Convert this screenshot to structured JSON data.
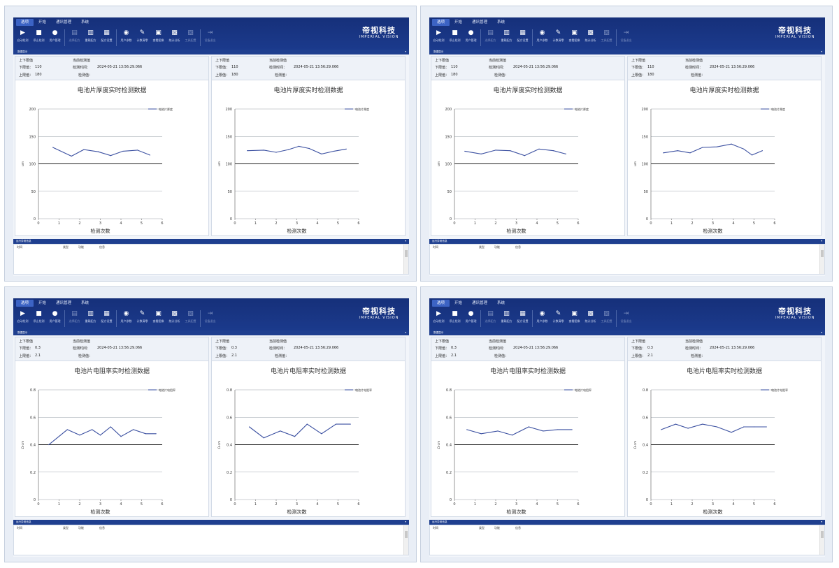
{
  "colors": {
    "ribbon": "#1b3a8c",
    "accent_tab": "#3c63c4",
    "line": "#3a4fa0"
  },
  "tabs": [
    "选项",
    "开始",
    "通讯管理",
    "系统"
  ],
  "toolbar": [
    {
      "label": "启动检测",
      "icon": "play-icon",
      "dim": false
    },
    {
      "label": "停止检测",
      "icon": "stop-icon",
      "dim": false
    },
    {
      "label": "用户管理",
      "icon": "user-icon",
      "dim": false
    },
    {
      "sep": true
    },
    {
      "label": "选择配方",
      "icon": "recipe-select-icon",
      "dim": true
    },
    {
      "label": "重载配方",
      "icon": "recipe-reload-icon",
      "dim": false
    },
    {
      "label": "配方设置",
      "icon": "recipe-settings-icon",
      "dim": false
    },
    {
      "sep": true
    },
    {
      "label": "用户参数",
      "icon": "user-params-icon",
      "dim": false
    },
    {
      "label": "计数清零",
      "icon": "clear-count-icon",
      "dim": false
    },
    {
      "label": "查看图像",
      "icon": "image-icon",
      "dim": false
    },
    {
      "label": "统计分析",
      "icon": "stats-icon",
      "dim": false
    },
    {
      "label": "工具配置",
      "icon": "tools-config-icon",
      "dim": true
    },
    {
      "sep": true
    },
    {
      "label": "设备退出",
      "icon": "exit-icon",
      "dim": true
    }
  ],
  "logo": {
    "cn": "帝视科技",
    "en": "IMPERIAL VISION"
  },
  "device_bar": "数据显示",
  "log_bar": "运行异常信息",
  "log_columns": [
    "时间",
    "类型",
    "功能",
    "信息"
  ],
  "labels": {
    "limits": "上下限值",
    "lower": "下限值：",
    "upper": "上限值：",
    "latest": "当前检测值",
    "time": "检测时间：",
    "value": "检测值：",
    "xlabel": "检测次数"
  },
  "windows": [
    {
      "panels": [
        {
          "lower": "110",
          "upper": "180",
          "time": "2024-05-21 13:56:29.066",
          "title": "电池片厚度实时检测数据",
          "ylabel": "um",
          "legend": "电池片厚度",
          "chart_data": {
            "type": "line",
            "xlim": [
              0,
              6
            ],
            "ylim": [
              0,
              200
            ],
            "yticks": [
              0,
              50,
              100,
              150,
              200
            ],
            "x": [
              0.7,
              1.6,
              2.2,
              2.9,
              3.5,
              4.1,
              4.8,
              5.4
            ],
            "series": [
              {
                "name": "电池片厚度",
                "values": [
                  130,
                  114,
                  126,
                  122,
                  115,
                  123,
                  125,
                  116
                ]
              }
            ]
          }
        },
        {
          "lower": "110",
          "upper": "180",
          "time": "2024-05-21 13:56:29.066",
          "title": "电池片厚度实时检测数据",
          "ylabel": "um",
          "legend": "电池片厚度",
          "chart_data": {
            "type": "line",
            "xlim": [
              0,
              6
            ],
            "ylim": [
              0,
              200
            ],
            "yticks": [
              0,
              50,
              100,
              150,
              200
            ],
            "x": [
              0.6,
              1.4,
              2.0,
              2.6,
              3.1,
              3.6,
              4.2,
              4.8,
              5.4
            ],
            "series": [
              {
                "name": "电池片厚度",
                "values": [
                  124,
                  125,
                  121,
                  126,
                  132,
                  128,
                  118,
                  123,
                  127
                ]
              }
            ]
          }
        }
      ]
    },
    {
      "panels": [
        {
          "lower": "110",
          "upper": "180",
          "time": "2024-05-21 13:56:29.066",
          "title": "电池片厚度实时检测数据",
          "ylabel": "um",
          "legend": "电池片厚度",
          "chart_data": {
            "type": "line",
            "xlim": [
              0,
              6
            ],
            "ylim": [
              0,
              200
            ],
            "yticks": [
              0,
              50,
              100,
              150,
              200
            ],
            "x": [
              0.5,
              1.3,
              2.0,
              2.7,
              3.4,
              4.1,
              4.8,
              5.4
            ],
            "series": [
              {
                "name": "电池片厚度",
                "values": [
                  123,
                  118,
                  125,
                  124,
                  115,
                  127,
                  124,
                  118
                ]
              }
            ]
          }
        },
        {
          "lower": "110",
          "upper": "180",
          "time": "2024-05-21 13:56:29.066",
          "title": "电池片厚度实时检测数据",
          "ylabel": "um",
          "legend": "电池片厚度",
          "chart_data": {
            "type": "line",
            "xlim": [
              0,
              6
            ],
            "ylim": [
              0,
              200
            ],
            "yticks": [
              0,
              50,
              100,
              150,
              200
            ],
            "x": [
              0.6,
              1.3,
              1.9,
              2.5,
              3.2,
              3.9,
              4.5,
              4.9,
              5.4
            ],
            "series": [
              {
                "name": "电池片厚度",
                "values": [
                  120,
                  124,
                  120,
                  130,
                  131,
                  136,
                  127,
                  116,
                  124
                ]
              }
            ]
          }
        }
      ]
    },
    {
      "panels": [
        {
          "lower": "0.3",
          "upper": "2.1",
          "time": "2024-05-21 13:56:29.066",
          "title": "电池片电阻率实时检测数据",
          "ylabel": "Ω·cm",
          "legend": "电池片电阻率",
          "chart_data": {
            "type": "line",
            "xlim": [
              0,
              6
            ],
            "ylim": [
              0,
              0.8
            ],
            "yticks": [
              0,
              0.2,
              0.4,
              0.6,
              0.8
            ],
            "x": [
              0.5,
              1.4,
              2.0,
              2.6,
              3.0,
              3.5,
              4.0,
              4.6,
              5.2,
              5.7
            ],
            "series": [
              {
                "name": "电池片电阻率",
                "values": [
                  0.4,
                  0.51,
                  0.47,
                  0.51,
                  0.47,
                  0.53,
                  0.46,
                  0.51,
                  0.48,
                  0.48
                ]
              }
            ]
          }
        },
        {
          "lower": "0.3",
          "upper": "2.1",
          "time": "2024-05-21 13:56:29.066",
          "title": "电池片电阻率实时检测数据",
          "ylabel": "Ω·cm",
          "legend": "电池片电阻率",
          "chart_data": {
            "type": "line",
            "xlim": [
              0,
              6
            ],
            "ylim": [
              0,
              0.8
            ],
            "yticks": [
              0,
              0.2,
              0.4,
              0.6,
              0.8
            ],
            "x": [
              0.7,
              1.4,
              2.2,
              2.9,
              3.5,
              4.2,
              4.9,
              5.6
            ],
            "series": [
              {
                "name": "电池片电阻率",
                "values": [
                  0.53,
                  0.45,
                  0.5,
                  0.46,
                  0.55,
                  0.48,
                  0.55,
                  0.55
                ]
              }
            ]
          }
        }
      ]
    },
    {
      "panels": [
        {
          "lower": "0.3",
          "upper": "2.1",
          "time": "2024-05-21 13:56:29.066",
          "title": "电池片电阻率实时检测数据",
          "ylabel": "Ω·cm",
          "legend": "电池片电阻率",
          "chart_data": {
            "type": "line",
            "xlim": [
              0,
              6
            ],
            "ylim": [
              0,
              0.8
            ],
            "yticks": [
              0,
              0.2,
              0.4,
              0.6,
              0.8
            ],
            "x": [
              0.6,
              1.3,
              2.1,
              2.8,
              3.6,
              4.3,
              5.0,
              5.7
            ],
            "series": [
              {
                "name": "电池片电阻率",
                "values": [
                  0.51,
                  0.48,
                  0.5,
                  0.47,
                  0.53,
                  0.5,
                  0.51,
                  0.51
                ]
              }
            ]
          }
        },
        {
          "lower": "0.3",
          "upper": "2.1",
          "time": "2024-05-21 13:56:29.066",
          "title": "电池片电阻率实时检测数据",
          "ylabel": "Ω·cm",
          "legend": "电池片电阻率",
          "chart_data": {
            "type": "line",
            "xlim": [
              0,
              6
            ],
            "ylim": [
              0,
              0.8
            ],
            "yticks": [
              0,
              0.2,
              0.4,
              0.6,
              0.8
            ],
            "x": [
              0.5,
              1.2,
              1.8,
              2.5,
              3.2,
              3.9,
              4.5,
              5.0,
              5.6
            ],
            "series": [
              {
                "name": "电池片电阻率",
                "values": [
                  0.51,
                  0.55,
                  0.52,
                  0.55,
                  0.53,
                  0.49,
                  0.53,
                  0.53,
                  0.53
                ]
              }
            ]
          }
        }
      ]
    }
  ]
}
